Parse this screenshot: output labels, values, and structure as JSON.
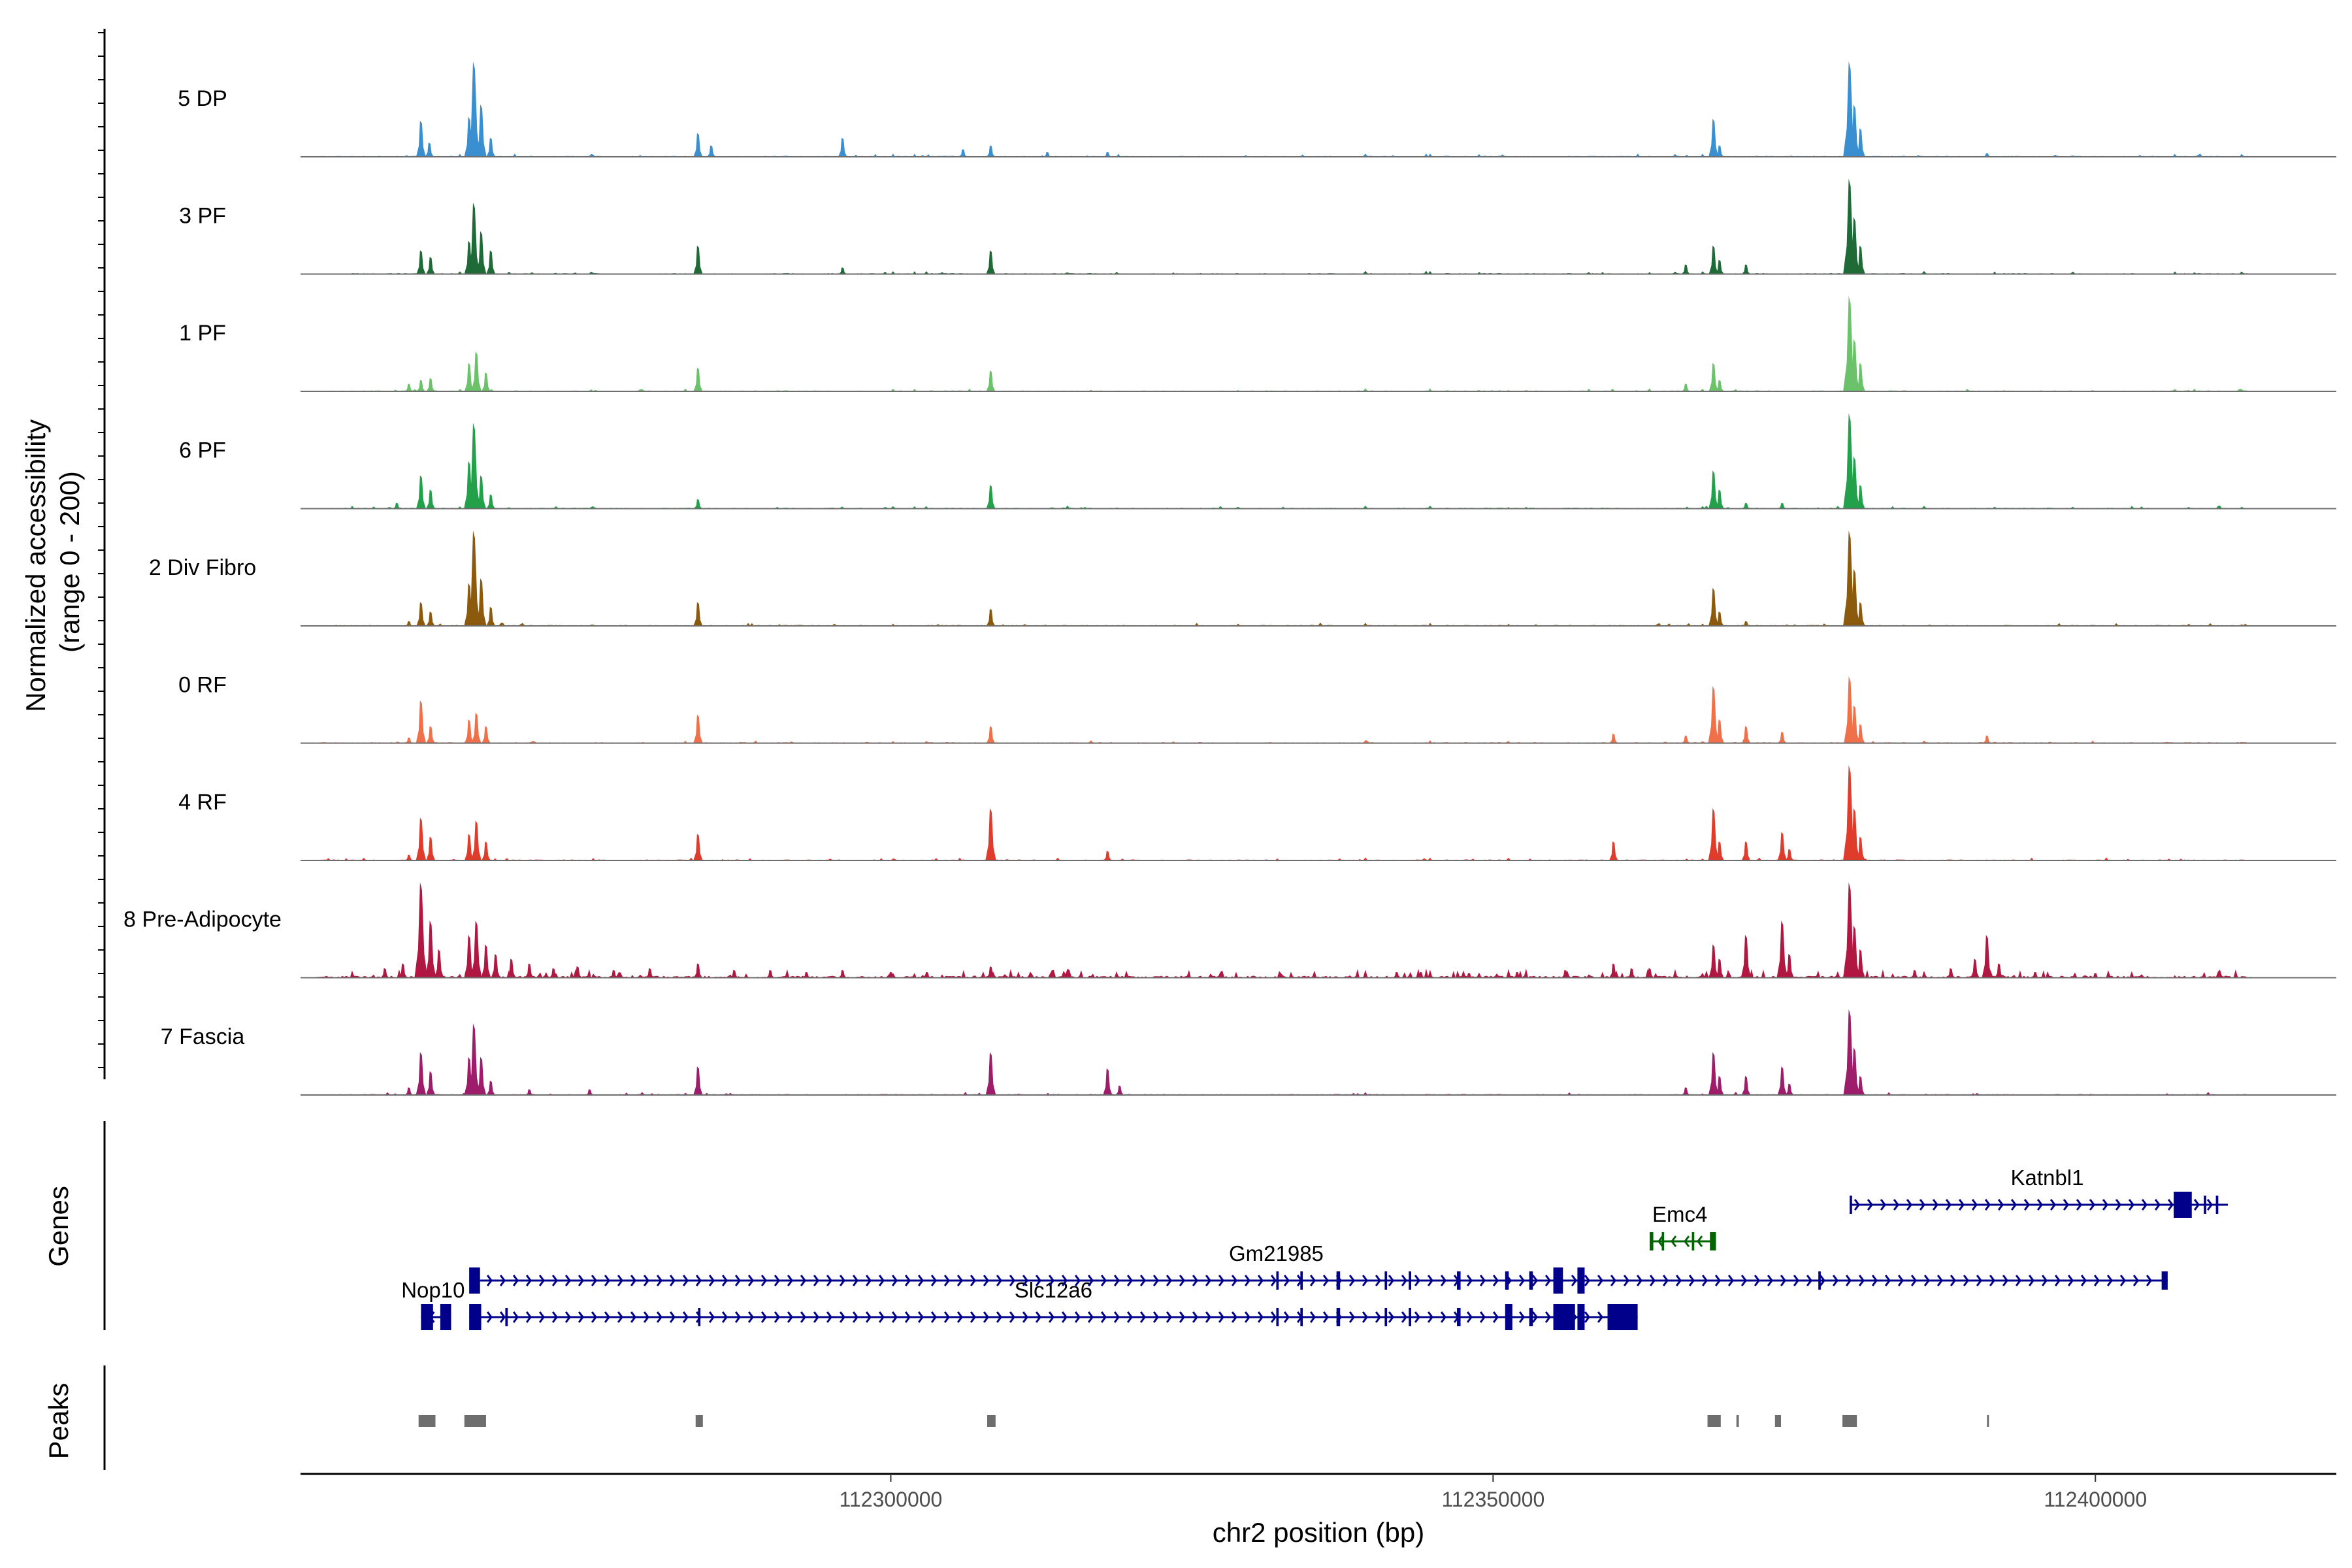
{
  "chart_data": {
    "type": "coverage",
    "title": "",
    "chromosome": "chr2",
    "xlabel": "chr2 position (bp)",
    "ylabel": "Normalized accessibility\n(range 0 - 200)",
    "ylabel_lines": [
      "Normalized accessibility",
      "(range 0 - 200)"
    ],
    "y_range": [
      0,
      200
    ],
    "xlim": [
      112251000,
      112420000
    ],
    "x_ticks": [
      112300000,
      112350000,
      112400000
    ],
    "x_tick_labels": [
      "112300000",
      "112350000",
      "112400000"
    ],
    "panel_labels": {
      "genes": "Genes",
      "peaks": "Peaks"
    },
    "series": [
      {
        "name": "5 DP",
        "color": "#3a8fd0",
        "peaks": [
          [
            112261000,
            0.38
          ],
          [
            112261700,
            0.15
          ],
          [
            112265000,
            0.42
          ],
          [
            112265400,
            1.0
          ],
          [
            112266000,
            0.55
          ],
          [
            112266800,
            0.2
          ],
          [
            112284000,
            0.25
          ],
          [
            112285100,
            0.12
          ],
          [
            112296000,
            0.2
          ],
          [
            112306000,
            0.08
          ],
          [
            112308300,
            0.12
          ],
          [
            112313000,
            0.05
          ],
          [
            112318000,
            0.05
          ],
          [
            112368300,
            0.4
          ],
          [
            112368800,
            0.12
          ],
          [
            112380000,
            0.55
          ],
          [
            112379600,
            1.0
          ],
          [
            112380500,
            0.3
          ],
          [
            112391000,
            0.04
          ]
        ]
      },
      {
        "name": "3 PF",
        "color": "#1e6b37",
        "peaks": [
          [
            112261000,
            0.25
          ],
          [
            112261800,
            0.18
          ],
          [
            112265000,
            0.35
          ],
          [
            112265400,
            0.75
          ],
          [
            112266000,
            0.45
          ],
          [
            112266800,
            0.25
          ],
          [
            112284000,
            0.3
          ],
          [
            112296000,
            0.07
          ],
          [
            112308300,
            0.25
          ],
          [
            112366000,
            0.1
          ],
          [
            112368300,
            0.3
          ],
          [
            112368800,
            0.15
          ],
          [
            112371000,
            0.1
          ],
          [
            112380000,
            0.6
          ],
          [
            112379600,
            1.0
          ],
          [
            112380500,
            0.3
          ]
        ]
      },
      {
        "name": "1 PF",
        "color": "#6bc26b",
        "peaks": [
          [
            112260000,
            0.08
          ],
          [
            112261000,
            0.12
          ],
          [
            112261800,
            0.14
          ],
          [
            112265000,
            0.3
          ],
          [
            112265600,
            0.42
          ],
          [
            112266400,
            0.2
          ],
          [
            112284000,
            0.25
          ],
          [
            112308300,
            0.22
          ],
          [
            112366000,
            0.08
          ],
          [
            112368300,
            0.3
          ],
          [
            112368800,
            0.12
          ],
          [
            112379600,
            1.0
          ],
          [
            112380000,
            0.55
          ],
          [
            112380500,
            0.3
          ]
        ]
      },
      {
        "name": "6 PF",
        "color": "#23a04a",
        "peaks": [
          [
            112259000,
            0.06
          ],
          [
            112261000,
            0.35
          ],
          [
            112261800,
            0.2
          ],
          [
            112265000,
            0.5
          ],
          [
            112265400,
            0.9
          ],
          [
            112266000,
            0.35
          ],
          [
            112266800,
            0.15
          ],
          [
            112284000,
            0.1
          ],
          [
            112308300,
            0.25
          ],
          [
            112368300,
            0.4
          ],
          [
            112368800,
            0.2
          ],
          [
            112371000,
            0.06
          ],
          [
            112374000,
            0.06
          ],
          [
            112379600,
            1.0
          ],
          [
            112380000,
            0.55
          ],
          [
            112380500,
            0.25
          ]
        ]
      },
      {
        "name": "2 Div Fibro",
        "color": "#8b5a0d",
        "peaks": [
          [
            112260000,
            0.05
          ],
          [
            112261000,
            0.25
          ],
          [
            112261800,
            0.15
          ],
          [
            112265000,
            0.45
          ],
          [
            112265400,
            1.0
          ],
          [
            112266000,
            0.5
          ],
          [
            112266800,
            0.2
          ],
          [
            112284000,
            0.25
          ],
          [
            112308300,
            0.18
          ],
          [
            112368300,
            0.4
          ],
          [
            112368800,
            0.15
          ],
          [
            112371000,
            0.05
          ],
          [
            112379600,
            1.0
          ],
          [
            112380000,
            0.6
          ],
          [
            112380500,
            0.25
          ]
        ]
      },
      {
        "name": "0 RF",
        "color": "#f0704a",
        "peaks": [
          [
            112260000,
            0.06
          ],
          [
            112261000,
            0.45
          ],
          [
            112261800,
            0.18
          ],
          [
            112265000,
            0.25
          ],
          [
            112265600,
            0.32
          ],
          [
            112266400,
            0.18
          ],
          [
            112284000,
            0.3
          ],
          [
            112308300,
            0.18
          ],
          [
            112360000,
            0.1
          ],
          [
            112366000,
            0.08
          ],
          [
            112368300,
            0.6
          ],
          [
            112368800,
            0.25
          ],
          [
            112371000,
            0.18
          ],
          [
            112374000,
            0.12
          ],
          [
            112379600,
            0.7
          ],
          [
            112380000,
            0.4
          ],
          [
            112380500,
            0.2
          ],
          [
            112391000,
            0.08
          ]
        ]
      },
      {
        "name": "4 RF",
        "color": "#e03c2c",
        "peaks": [
          [
            112260000,
            0.06
          ],
          [
            112261000,
            0.45
          ],
          [
            112261800,
            0.25
          ],
          [
            112265000,
            0.28
          ],
          [
            112265600,
            0.42
          ],
          [
            112266400,
            0.2
          ],
          [
            112284000,
            0.28
          ],
          [
            112308300,
            0.55
          ],
          [
            112318000,
            0.1
          ],
          [
            112360000,
            0.2
          ],
          [
            112368300,
            0.55
          ],
          [
            112368800,
            0.2
          ],
          [
            112371000,
            0.2
          ],
          [
            112374000,
            0.3
          ],
          [
            112374600,
            0.12
          ],
          [
            112379600,
            1.0
          ],
          [
            112380000,
            0.55
          ],
          [
            112380500,
            0.25
          ]
        ]
      },
      {
        "name": "8 Pre-Adipocyte",
        "color": "#b01842",
        "peaks": [
          [
            112258000,
            0.1
          ],
          [
            112259500,
            0.15
          ],
          [
            112261000,
            1.0
          ],
          [
            112261800,
            0.6
          ],
          [
            112262500,
            0.3
          ],
          [
            112265000,
            0.45
          ],
          [
            112265600,
            0.6
          ],
          [
            112266400,
            0.35
          ],
          [
            112267200,
            0.25
          ],
          [
            112268500,
            0.2
          ],
          [
            112270000,
            0.15
          ],
          [
            112272000,
            0.1
          ],
          [
            112274000,
            0.12
          ],
          [
            112277000,
            0.08
          ],
          [
            112280000,
            0.1
          ],
          [
            112284000,
            0.15
          ],
          [
            112287000,
            0.08
          ],
          [
            112290000,
            0.08
          ],
          [
            112293000,
            0.06
          ],
          [
            112296000,
            0.08
          ],
          [
            112300000,
            0.06
          ],
          [
            112303000,
            0.06
          ],
          [
            112308300,
            0.12
          ],
          [
            112342000,
            0.06
          ],
          [
            112344000,
            0.06
          ],
          [
            112348000,
            0.05
          ],
          [
            112352000,
            0.06
          ],
          [
            112356000,
            0.08
          ],
          [
            112360000,
            0.15
          ],
          [
            112361500,
            0.1
          ],
          [
            112363000,
            0.1
          ],
          [
            112368300,
            0.35
          ],
          [
            112368800,
            0.2
          ],
          [
            112371000,
            0.45
          ],
          [
            112374000,
            0.6
          ],
          [
            112374600,
            0.25
          ],
          [
            112379600,
            1.0
          ],
          [
            112380000,
            0.55
          ],
          [
            112380500,
            0.3
          ],
          [
            112385000,
            0.08
          ],
          [
            112388000,
            0.1
          ],
          [
            112390000,
            0.2
          ],
          [
            112391000,
            0.45
          ],
          [
            112392000,
            0.15
          ],
          [
            112395000,
            0.06
          ],
          [
            112400000,
            0.05
          ]
        ]
      },
      {
        "name": "7 Fascia",
        "color": "#9e1d6a",
        "peaks": [
          [
            112260000,
            0.08
          ],
          [
            112261000,
            0.45
          ],
          [
            112261800,
            0.25
          ],
          [
            112265000,
            0.4
          ],
          [
            112265400,
            0.75
          ],
          [
            112266000,
            0.4
          ],
          [
            112266800,
            0.15
          ],
          [
            112270000,
            0.06
          ],
          [
            112275000,
            0.06
          ],
          [
            112284000,
            0.3
          ],
          [
            112308300,
            0.45
          ],
          [
            112318000,
            0.28
          ],
          [
            112319000,
            0.1
          ],
          [
            112366000,
            0.08
          ],
          [
            112368300,
            0.45
          ],
          [
            112368800,
            0.2
          ],
          [
            112371000,
            0.2
          ],
          [
            112374000,
            0.3
          ],
          [
            112374600,
            0.12
          ],
          [
            112379600,
            0.9
          ],
          [
            112380000,
            0.5
          ],
          [
            112380500,
            0.2
          ]
        ]
      }
    ],
    "genes": [
      {
        "name": "Nop10",
        "start": 112261000,
        "end": 112263500,
        "strand": "-",
        "color": "#00008b",
        "row": 3,
        "label_pos": 112262000,
        "exons": [
          [
            112261000,
            112262000
          ],
          [
            112262600,
            112263500
          ]
        ]
      },
      {
        "name": "Slc12a6",
        "start": 112265000,
        "end": 112362000,
        "strand": "+",
        "color": "#00008b",
        "row": 3,
        "label_pos": 112313500,
        "exons": [
          [
            112265000,
            112266000
          ],
          [
            112268000,
            112268200
          ],
          [
            112284000,
            112284200
          ],
          [
            112332000,
            112332200
          ],
          [
            112334000,
            112334200
          ],
          [
            112337000,
            112337300
          ],
          [
            112341000,
            112341200
          ],
          [
            112343000,
            112343200
          ],
          [
            112347000,
            112347300
          ],
          [
            112351000,
            112351600
          ],
          [
            112353000,
            112353300
          ],
          [
            112355000,
            112356800
          ],
          [
            112357000,
            112357600
          ],
          [
            112359500,
            112362000
          ]
        ]
      },
      {
        "name": "Gm21985",
        "start": 112265000,
        "end": 112406000,
        "strand": "+",
        "color": "#00008b",
        "row": 2,
        "label_pos": 112332000,
        "exons": [
          [
            112265000,
            112265900
          ],
          [
            112332000,
            112332200
          ],
          [
            112334000,
            112334200
          ],
          [
            112337000,
            112337300
          ],
          [
            112341000,
            112341200
          ],
          [
            112343000,
            112343200
          ],
          [
            112347000,
            112347300
          ],
          [
            112351000,
            112351300
          ],
          [
            112353000,
            112353300
          ],
          [
            112355000,
            112355800
          ],
          [
            112357000,
            112357600
          ],
          [
            112377000,
            112377200
          ],
          [
            112405500,
            112406000
          ]
        ]
      },
      {
        "name": "Emc4",
        "start": 112363000,
        "end": 112368500,
        "strand": "-",
        "color": "#006400",
        "row": 1,
        "label_pos": 112365500,
        "exons": [
          [
            112363000,
            112363300
          ],
          [
            112364000,
            112364200
          ],
          [
            112366500,
            112366700
          ],
          [
            112368000,
            112368500
          ]
        ]
      },
      {
        "name": "Katnbl1",
        "start": 112379600,
        "end": 112411000,
        "strand": "+",
        "color": "#00008b",
        "row": 0,
        "label_pos": 112396000,
        "exons": [
          [
            112379600,
            112379800
          ],
          [
            112406500,
            112408000
          ],
          [
            112409000,
            112409200
          ],
          [
            112410000,
            112410200
          ]
        ]
      }
    ],
    "peaks_track": [
      [
        112260800,
        112262200
      ],
      [
        112264600,
        112266400
      ],
      [
        112283800,
        112284400
      ],
      [
        112308000,
        112308700
      ],
      [
        112367800,
        112368900
      ],
      [
        112370200,
        112370400
      ],
      [
        112373400,
        112373900
      ],
      [
        112379000,
        112380200
      ],
      [
        112391000,
        112391100
      ]
    ]
  }
}
